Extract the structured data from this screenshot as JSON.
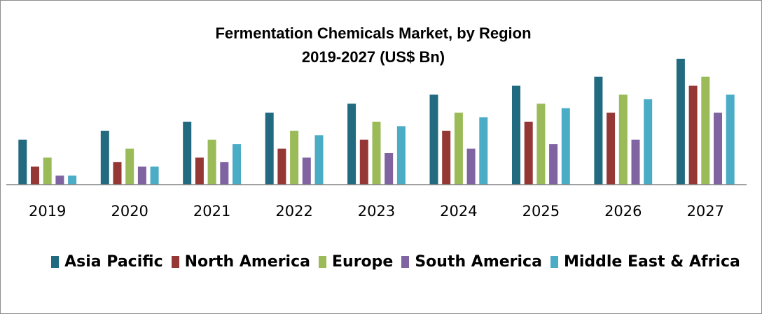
{
  "chart_data": {
    "type": "bar",
    "title": "Fermentation Chemicals Market,  by Region",
    "subtitle": "2019-2027 (US$ Bn)",
    "xlabel": "",
    "ylabel": "",
    "categories": [
      "2019",
      "2020",
      "2021",
      "2022",
      "2023",
      "2024",
      "2025",
      "2026",
      "2027"
    ],
    "ylim": [
      0,
      14
    ],
    "grid": false,
    "legend_position": "bottom",
    "series": [
      {
        "name": "Asia Pacific",
        "color": "#216a7f",
        "values": [
          5,
          6,
          7,
          8,
          9,
          10,
          11,
          12,
          14
        ]
      },
      {
        "name": "North America",
        "color": "#953734",
        "values": [
          2,
          2.5,
          3,
          4,
          5,
          6,
          7,
          8,
          11
        ]
      },
      {
        "name": "Europe",
        "color": "#9bbb59",
        "values": [
          3,
          4,
          5,
          6,
          7,
          8,
          9,
          10,
          12
        ]
      },
      {
        "name": "South America",
        "color": "#8064a2",
        "values": [
          1,
          2,
          2.5,
          3,
          3.5,
          4,
          4.5,
          5,
          8
        ]
      },
      {
        "name": "Middle East & Africa",
        "color": "#4bacc6",
        "values": [
          1,
          2,
          4.5,
          5.5,
          6.5,
          7.5,
          8.5,
          9.5,
          10
        ]
      }
    ]
  }
}
